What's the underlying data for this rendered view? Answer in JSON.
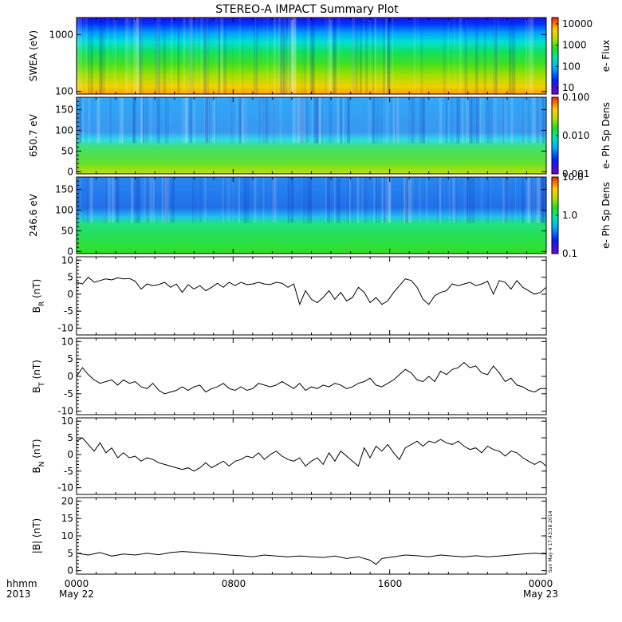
{
  "title": "STEREO-A IMPACT Summary Plot",
  "x_axis": {
    "row1": [
      "0000",
      "0800",
      "1600",
      "0000"
    ],
    "row2": [
      "May 22",
      "",
      "",
      "May 23"
    ],
    "unit_label_1": "hhmm",
    "unit_label_2": "2013",
    "hours": [
      0,
      8,
      16,
      24
    ]
  },
  "stamp": "Sun May  4 17:43:38 2014",
  "colors": {
    "line": "#000000",
    "frame": "#000000",
    "background": "#ffffff"
  },
  "chart_data": [
    {
      "type": "heatmap",
      "ylabel": "SWEA (eV)",
      "yscale": "log",
      "ylim": [
        90,
        2000
      ],
      "yticks": [
        100,
        1000
      ],
      "ytick_labels": [
        "100",
        "1000"
      ],
      "colorbar_label": "e- Flux",
      "colorbar_scale": "log",
      "colorbar_range": [
        5,
        20000
      ],
      "colorbar_ticks": [
        10,
        100,
        1000,
        10000
      ],
      "colorbar_tick_labels": [
        "10",
        "100",
        "1000",
        "10000"
      ]
    },
    {
      "type": "heatmap",
      "ylabel": "650.7 eV",
      "ylim": [
        -5,
        180
      ],
      "yticks": [
        0,
        50,
        100,
        150
      ],
      "ytick_labels": [
        "0",
        "50",
        "100",
        "150"
      ],
      "colorbar_label": "e- Ph Sp Dens",
      "colorbar_scale": "log",
      "colorbar_range": [
        0.001,
        0.1
      ],
      "colorbar_ticks": [
        0.001,
        0.01,
        0.1
      ],
      "colorbar_tick_labels": [
        "0.001",
        "0.010",
        "0.100"
      ]
    },
    {
      "type": "heatmap",
      "ylabel": "246.6 eV",
      "ylim": [
        -5,
        180
      ],
      "yticks": [
        0,
        50,
        100,
        150
      ],
      "ytick_labels": [
        "0",
        "50",
        "100",
        "150"
      ],
      "colorbar_label": "e- Ph Sp Dens",
      "colorbar_scale": "log",
      "colorbar_range": [
        0.1,
        10
      ],
      "colorbar_ticks": [
        0.1,
        1,
        10
      ],
      "colorbar_tick_labels": [
        "0.1",
        "1.0",
        "10.0"
      ]
    },
    {
      "type": "line",
      "ylabel_main": "B",
      "ylabel_sub": "R",
      "ylabel_unit": "(nT)",
      "ylim": [
        -12,
        11
      ],
      "yticks": [
        -10,
        -5,
        0,
        5,
        10
      ],
      "ytick_labels": [
        "-10",
        "-5",
        "0",
        "5",
        "10"
      ],
      "x": [
        0,
        0.3,
        0.6,
        0.9,
        1.2,
        1.5,
        1.8,
        2.1,
        2.4,
        2.7,
        3.0,
        3.3,
        3.6,
        3.9,
        4.2,
        4.5,
        4.8,
        5.1,
        5.4,
        5.7,
        6.0,
        6.3,
        6.6,
        6.9,
        7.2,
        7.5,
        7.8,
        8.1,
        8.4,
        8.7,
        9.0,
        9.3,
        9.6,
        9.9,
        10.2,
        10.5,
        10.8,
        11.1,
        11.4,
        11.7,
        12.0,
        12.3,
        12.6,
        12.9,
        13.2,
        13.5,
        13.8,
        14.1,
        14.4,
        14.7,
        15.0,
        15.3,
        15.6,
        15.9,
        16.2,
        16.5,
        16.8,
        17.1,
        17.4,
        17.7,
        18.0,
        18.3,
        18.6,
        18.9,
        19.2,
        19.5,
        19.8,
        20.1,
        20.4,
        20.7,
        21.0,
        21.3,
        21.6,
        21.9,
        22.2,
        22.5,
        22.8,
        23.1,
        23.4,
        23.7,
        24.0
      ],
      "y": [
        3.5,
        3.0,
        5.0,
        3.5,
        4.0,
        4.5,
        4.2,
        4.8,
        4.5,
        4.6,
        3.8,
        1.5,
        3.0,
        2.5,
        2.8,
        3.5,
        2.0,
        3.0,
        0.5,
        2.8,
        1.5,
        2.5,
        1.0,
        2.0,
        3.2,
        2.0,
        3.5,
        2.5,
        3.5,
        2.8,
        3.0,
        3.5,
        3.0,
        2.8,
        3.5,
        3.2,
        2.0,
        3.0,
        -3.0,
        1.0,
        -1.5,
        -2.5,
        -1.0,
        1.0,
        -1.5,
        0.5,
        -2.0,
        -1.0,
        2.0,
        0.5,
        -2.5,
        -1.0,
        -3.0,
        -2.0,
        0.5,
        2.5,
        4.5,
        4.0,
        2.0,
        -1.5,
        -3.0,
        -0.5,
        0.5,
        1.0,
        3.0,
        2.5,
        3.0,
        3.5,
        2.5,
        3.0,
        3.8,
        0.0,
        4.0,
        3.5,
        1.5,
        4.0,
        2.0,
        1.0,
        0.0,
        0.5,
        2.0
      ]
    },
    {
      "type": "line",
      "ylabel_main": "B",
      "ylabel_sub": "T",
      "ylabel_unit": "(nT)",
      "ylim": [
        -11,
        11
      ],
      "yticks": [
        -10,
        -5,
        0,
        5,
        10
      ],
      "ytick_labels": [
        "-10",
        "-5",
        "0",
        "5",
        "10"
      ],
      "x": [
        0,
        0.3,
        0.6,
        0.9,
        1.2,
        1.5,
        1.8,
        2.1,
        2.4,
        2.7,
        3.0,
        3.3,
        3.6,
        3.9,
        4.2,
        4.5,
        4.8,
        5.1,
        5.4,
        5.7,
        6.0,
        6.3,
        6.6,
        6.9,
        7.2,
        7.5,
        7.8,
        8.1,
        8.4,
        8.7,
        9.0,
        9.3,
        9.6,
        9.9,
        10.2,
        10.5,
        10.8,
        11.1,
        11.4,
        11.7,
        12.0,
        12.3,
        12.6,
        12.9,
        13.2,
        13.5,
        13.8,
        14.1,
        14.4,
        14.7,
        15.0,
        15.3,
        15.6,
        15.9,
        16.2,
        16.5,
        16.8,
        17.1,
        17.4,
        17.7,
        18.0,
        18.3,
        18.6,
        18.9,
        19.2,
        19.5,
        19.8,
        20.1,
        20.4,
        20.7,
        21.0,
        21.3,
        21.6,
        21.9,
        22.2,
        22.5,
        22.8,
        23.1,
        23.4,
        23.7,
        24.0
      ],
      "y": [
        0.0,
        2.5,
        0.5,
        -1.0,
        -2.0,
        -1.5,
        -1.0,
        -2.5,
        -1.0,
        -2.0,
        -1.5,
        -3.0,
        -3.5,
        -2.0,
        -4.0,
        -5.0,
        -4.5,
        -4.0,
        -3.0,
        -4.0,
        -3.0,
        -2.5,
        -4.5,
        -3.5,
        -3.0,
        -2.0,
        -3.5,
        -4.0,
        -3.0,
        -4.0,
        -3.5,
        -2.0,
        -2.5,
        -3.0,
        -2.5,
        -1.5,
        -2.5,
        -3.5,
        -2.0,
        -4.0,
        -3.0,
        -3.5,
        -2.5,
        -3.0,
        -2.0,
        -2.5,
        -3.5,
        -3.0,
        -2.0,
        -1.5,
        -0.5,
        -2.5,
        -3.0,
        -2.0,
        -1.0,
        0.5,
        2.0,
        1.0,
        -1.0,
        -1.5,
        0.0,
        -1.5,
        1.5,
        0.5,
        2.0,
        2.5,
        4.0,
        2.5,
        3.0,
        1.0,
        0.5,
        3.0,
        1.0,
        -1.5,
        -0.5,
        -2.5,
        -3.0,
        -4.0,
        -4.5,
        -3.5,
        -3.5
      ]
    },
    {
      "type": "line",
      "ylabel_main": "B",
      "ylabel_sub": "N",
      "ylabel_unit": "(nT)",
      "ylim": [
        -12,
        11
      ],
      "yticks": [
        -10,
        -5,
        0,
        5,
        10
      ],
      "ytick_labels": [
        "-10",
        "-5",
        "0",
        "5",
        "10"
      ],
      "x": [
        0,
        0.3,
        0.6,
        0.9,
        1.2,
        1.5,
        1.8,
        2.1,
        2.4,
        2.7,
        3.0,
        3.3,
        3.6,
        3.9,
        4.2,
        4.5,
        4.8,
        5.1,
        5.4,
        5.7,
        6.0,
        6.3,
        6.6,
        6.9,
        7.2,
        7.5,
        7.8,
        8.1,
        8.4,
        8.7,
        9.0,
        9.3,
        9.6,
        9.9,
        10.2,
        10.5,
        10.8,
        11.1,
        11.4,
        11.7,
        12.0,
        12.3,
        12.6,
        12.9,
        13.2,
        13.5,
        13.8,
        14.1,
        14.4,
        14.7,
        15.0,
        15.3,
        15.6,
        15.9,
        16.2,
        16.5,
        16.8,
        17.1,
        17.4,
        17.7,
        18.0,
        18.3,
        18.6,
        18.9,
        19.2,
        19.5,
        19.8,
        20.1,
        20.4,
        20.7,
        21.0,
        21.3,
        21.6,
        21.9,
        22.2,
        22.5,
        22.8,
        23.1,
        23.4,
        23.7,
        24.0
      ],
      "y": [
        4.0,
        5.0,
        3.0,
        1.0,
        3.5,
        0.5,
        2.0,
        -1.0,
        0.5,
        -1.0,
        -0.5,
        -2.0,
        -1.0,
        -1.5,
        -2.5,
        -3.0,
        -3.5,
        -4.0,
        -4.5,
        -4.0,
        -5.0,
        -4.0,
        -2.5,
        -4.0,
        -3.0,
        -2.0,
        -3.5,
        -2.0,
        -1.5,
        -0.5,
        -1.0,
        0.5,
        -1.5,
        0.0,
        1.0,
        -0.5,
        -1.5,
        -2.0,
        -1.0,
        -3.5,
        -2.0,
        -1.0,
        -3.0,
        0.5,
        -2.0,
        1.0,
        -0.5,
        -2.0,
        -3.5,
        2.0,
        -1.0,
        2.5,
        1.0,
        3.0,
        0.5,
        -1.5,
        2.0,
        3.0,
        4.0,
        2.5,
        4.0,
        3.5,
        4.5,
        3.5,
        3.0,
        4.0,
        2.5,
        1.5,
        2.0,
        0.5,
        2.5,
        1.5,
        1.0,
        -0.5,
        1.0,
        0.5,
        -1.0,
        -2.0,
        -3.0,
        -2.0,
        -3.5
      ]
    },
    {
      "type": "line",
      "ylabel_main": "|B|",
      "ylabel_sub": "",
      "ylabel_unit": "(nT)",
      "ylim": [
        -1,
        21
      ],
      "yticks": [
        0,
        5,
        10,
        15,
        20
      ],
      "ytick_labels": [
        "0",
        "5",
        "10",
        "15",
        "20"
      ],
      "x": [
        0,
        0.6,
        1.2,
        1.8,
        2.4,
        3.0,
        3.6,
        4.2,
        4.8,
        5.4,
        6.0,
        6.6,
        7.2,
        7.8,
        8.4,
        9.0,
        9.6,
        10.2,
        10.8,
        11.4,
        12.0,
        12.6,
        13.2,
        13.8,
        14.4,
        15.0,
        15.3,
        15.6,
        16.2,
        16.8,
        17.4,
        18.0,
        18.6,
        19.2,
        19.8,
        20.4,
        21.0,
        21.6,
        22.2,
        22.8,
        23.4,
        24.0
      ],
      "y": [
        5.0,
        4.5,
        5.2,
        4.2,
        4.8,
        4.5,
        5.0,
        4.6,
        5.2,
        5.5,
        5.3,
        5.0,
        4.8,
        4.5,
        4.3,
        4.0,
        4.5,
        4.2,
        4.0,
        4.2,
        4.0,
        3.8,
        4.2,
        3.5,
        4.0,
        3.0,
        1.8,
        3.5,
        4.0,
        4.5,
        4.3,
        4.0,
        4.5,
        4.2,
        4.0,
        4.3,
        4.0,
        4.2,
        4.5,
        4.8,
        5.0,
        4.8
      ]
    }
  ]
}
